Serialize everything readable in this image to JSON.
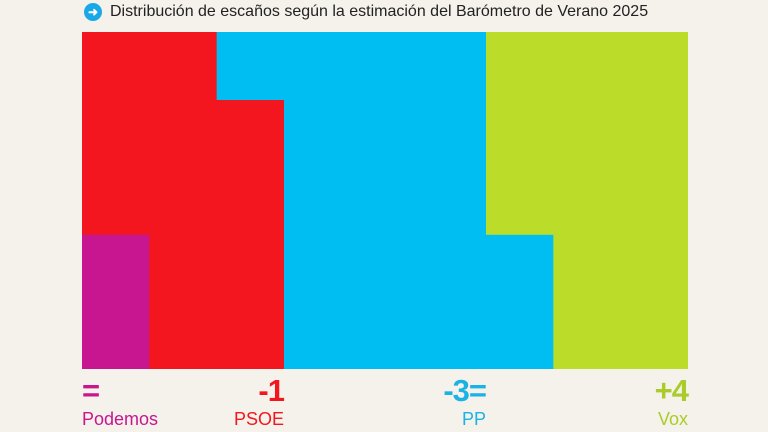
{
  "title": "Distribución de escaños según la estimación del Barómetro de Verano 2025",
  "title_icon": "arrow-right-circle-icon",
  "chart_data": {
    "type": "waffle",
    "title": "Distribución de escaños según la estimación del Barómetro de Verano 2025",
    "grid": {
      "rows": 5,
      "columns": 9,
      "fill_order": "column-major, bottom-up"
    },
    "series": [
      {
        "name": "Podemos",
        "seats": 2,
        "change": "=",
        "color": "#c7168f"
      },
      {
        "name": "PSOE",
        "seats": 12,
        "change": "-1",
        "color": "#f3161e"
      },
      {
        "name": "PP",
        "seats": 18,
        "change": "-3=",
        "color": "#00bdf2"
      },
      {
        "name": "Vox",
        "seats": 13,
        "change": "+4",
        "color": "#bcdc2a"
      }
    ]
  }
}
